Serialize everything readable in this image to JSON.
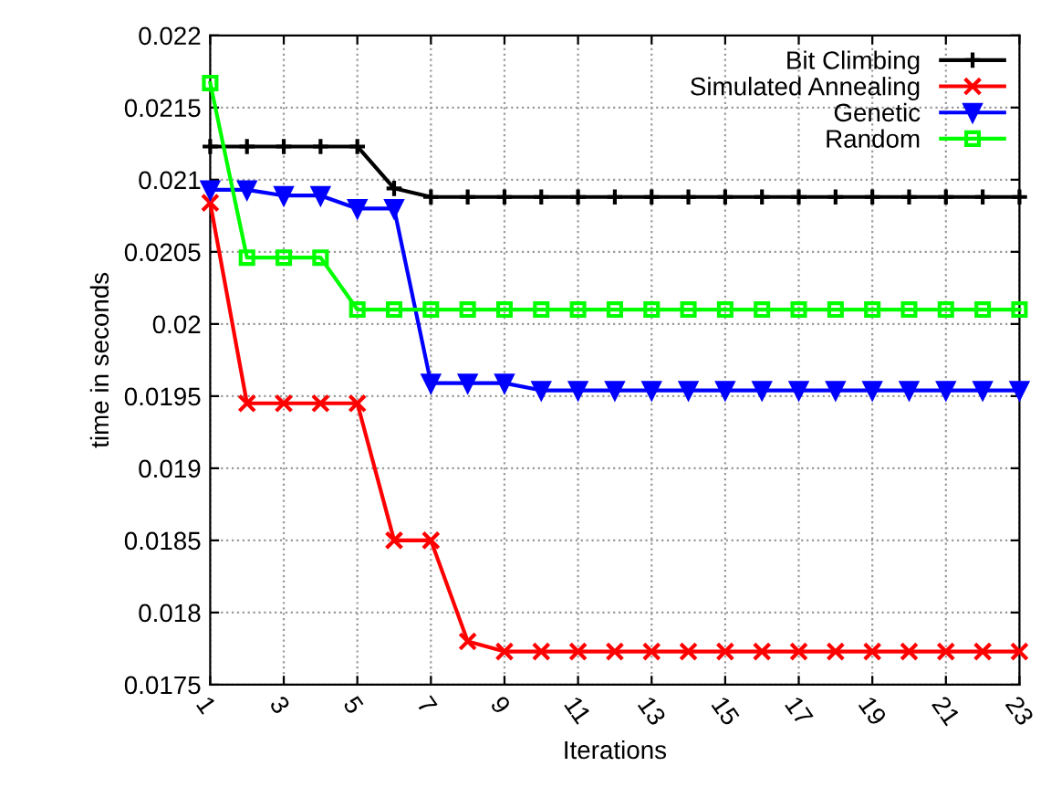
{
  "chart_data": {
    "type": "line",
    "xlabel": "Iterations",
    "ylabel": "time in seconds",
    "x": [
      1,
      2,
      3,
      4,
      5,
      6,
      7,
      8,
      9,
      10,
      11,
      12,
      13,
      14,
      15,
      16,
      17,
      18,
      19,
      20,
      21,
      22,
      23
    ],
    "series": [
      {
        "name": "Bit Climbing",
        "color": "#000000",
        "marker": "cross",
        "values": [
          0.02123,
          0.02123,
          0.02123,
          0.02123,
          0.02123,
          0.02094,
          0.02088,
          0.02088,
          0.02088,
          0.02088,
          0.02088,
          0.02088,
          0.02088,
          0.02088,
          0.02088,
          0.02088,
          0.02088,
          0.02088,
          0.02088,
          0.02088,
          0.02088,
          0.02088,
          0.02088
        ]
      },
      {
        "name": "Simulated Annealing",
        "color": "#ff0000",
        "marker": "x",
        "values": [
          0.02084,
          0.01945,
          0.01945,
          0.01945,
          0.01945,
          0.0185,
          0.0185,
          0.0178,
          0.01773,
          0.01773,
          0.01773,
          0.01773,
          0.01773,
          0.01773,
          0.01773,
          0.01773,
          0.01773,
          0.01773,
          0.01773,
          0.01773,
          0.01773,
          0.01773,
          0.01773
        ]
      },
      {
        "name": "Genetic",
        "color": "#0000ff",
        "marker": "triangle",
        "values": [
          0.02093,
          0.02093,
          0.02089,
          0.02089,
          0.0208,
          0.0208,
          0.01959,
          0.01959,
          0.01959,
          0.01954,
          0.01954,
          0.01954,
          0.01954,
          0.01954,
          0.01954,
          0.01954,
          0.01954,
          0.01954,
          0.01954,
          0.01954,
          0.01954,
          0.01954,
          0.01954
        ]
      },
      {
        "name": "Random",
        "color": "#00ff00",
        "marker": "square",
        "values": [
          0.02167,
          0.02046,
          0.02046,
          0.02046,
          0.0201,
          0.0201,
          0.0201,
          0.0201,
          0.0201,
          0.0201,
          0.0201,
          0.0201,
          0.0201,
          0.0201,
          0.0201,
          0.0201,
          0.0201,
          0.0201,
          0.0201,
          0.0201,
          0.0201,
          0.0201,
          0.0201
        ]
      }
    ],
    "xlim": [
      1,
      23
    ],
    "xticks": [
      1,
      3,
      5,
      7,
      9,
      11,
      13,
      15,
      17,
      19,
      21,
      23
    ],
    "ylim": [
      0.0175,
      0.022
    ],
    "yticks": [
      0.0175,
      0.018,
      0.0185,
      0.019,
      0.0195,
      0.02,
      0.0205,
      0.021,
      0.0215,
      0.022
    ],
    "grid": true,
    "legend": "top right",
    "line_style": "solid"
  }
}
